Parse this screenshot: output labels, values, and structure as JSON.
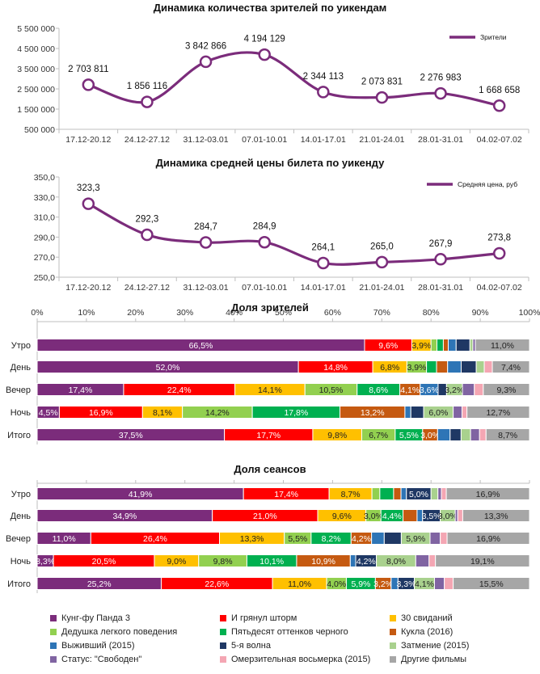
{
  "colors": {
    "line": "#7b2c7b",
    "axis": "#bfbfbf",
    "grid": "#d9d9d9"
  },
  "chart_data": [
    {
      "type": "line",
      "title": "Динамика количества зрителей по уикендам",
      "categories": [
        "17.12-20.12",
        "24.12-27.12",
        "31.12-03.01",
        "07.01-10.01",
        "14.01-17.01",
        "21.01-24.01",
        "28.01-31.01",
        "04.02-07.02"
      ],
      "series": [
        {
          "name": "Зрители",
          "values": [
            2703811,
            1856116,
            3842866,
            4194129,
            2344113,
            2073831,
            2276983,
            1668658
          ]
        }
      ],
      "labels": [
        "2 703 811",
        "1 856 116",
        "3 842 866",
        "4 194 129",
        "2 344 113",
        "2 073 831",
        "2 276 983",
        "1 668 658"
      ],
      "yticks": [
        "500 000",
        "1 500 000",
        "2 500 000",
        "3 500 000",
        "4 500 000",
        "5 500 000"
      ],
      "ylim": [
        500000,
        5500000
      ],
      "legend_label": "Зрители"
    },
    {
      "type": "line",
      "title": "Динамика средней цены билета по уикенду",
      "categories": [
        "17.12-20.12",
        "24.12-27.12",
        "31.12-03.01",
        "07.01-10.01",
        "14.01-17.01",
        "21.01-24.01",
        "28.01-31.01",
        "04.02-07.02"
      ],
      "series": [
        {
          "name": "Средняя цена, руб",
          "values": [
            323.3,
            292.3,
            284.7,
            284.9,
            264.1,
            265.0,
            267.9,
            273.8
          ]
        }
      ],
      "labels": [
        "323,3",
        "292,3",
        "284,7",
        "284,9",
        "264,1",
        "265,0",
        "267,9",
        "273,8"
      ],
      "yticks": [
        "250,0",
        "270,0",
        "290,0",
        "310,0",
        "330,0",
        "350,0"
      ],
      "ylim": [
        250,
        350
      ],
      "legend_label": "Средняя цена, руб"
    },
    {
      "type": "bar",
      "orientation": "horizontal-stacked-100",
      "title": "Доля зрителей",
      "xticks": [
        "0%",
        "10%",
        "20%",
        "30%",
        "40%",
        "50%",
        "60%",
        "70%",
        "80%",
        "90%",
        "100%"
      ],
      "categories": [
        "Утро",
        "День",
        "Вечер",
        "Ночь",
        "Итого"
      ],
      "rows": [
        [
          66.5,
          9.6,
          3.9,
          1.2,
          1.3,
          1.0,
          1.6,
          2.8,
          0.6,
          0.5,
          11.0
        ],
        [
          52.0,
          14.8,
          6.8,
          3.9,
          2.0,
          2.2,
          2.7,
          3.0,
          1.6,
          1.6,
          7.4
        ],
        [
          17.4,
          22.4,
          14.1,
          10.5,
          8.6,
          4.1,
          3.6,
          1.7,
          3.2,
          2.4,
          1.8,
          9.3
        ],
        [
          4.5,
          16.9,
          8.1,
          14.2,
          17.8,
          13.2,
          1.2,
          2.6,
          6.0,
          1.8,
          1.0,
          12.7
        ],
        [
          37.5,
          17.7,
          9.8,
          6.7,
          5.5,
          3.0,
          2.5,
          2.2,
          1.9,
          1.8,
          1.3,
          8.7
        ]
      ],
      "row_series": [
        [
          0,
          1,
          2,
          3,
          4,
          5,
          6,
          7,
          8,
          9,
          11
        ],
        [
          0,
          1,
          2,
          3,
          4,
          5,
          6,
          7,
          8,
          10,
          11
        ],
        [
          0,
          1,
          2,
          3,
          4,
          5,
          6,
          7,
          8,
          9,
          10,
          11
        ],
        [
          0,
          1,
          2,
          3,
          4,
          5,
          6,
          7,
          8,
          9,
          10,
          11
        ],
        [
          0,
          1,
          2,
          3,
          4,
          5,
          6,
          7,
          8,
          9,
          10,
          11
        ]
      ],
      "labels": [
        [
          "66,5%",
          "9,6%",
          "3,9%",
          "",
          "",
          "",
          "",
          "",
          "",
          "",
          "11,0%"
        ],
        [
          "52,0%",
          "14,8%",
          "6,8%",
          "3,9%",
          "",
          "",
          "",
          "",
          "",
          "",
          "7,4%"
        ],
        [
          "17,4%",
          "22,4%",
          "14,1%",
          "10,5%",
          "8,6%",
          "4,1%",
          "3,6%",
          "",
          "3,2%",
          "",
          "",
          "9,3%"
        ],
        [
          "4,5%",
          "16,9%",
          "8,1%",
          "14,2%",
          "17,8%",
          "13,2%",
          "",
          "",
          "6,0%",
          "",
          "",
          "12,7%"
        ],
        [
          "37,5%",
          "17,7%",
          "9,8%",
          "6,7%",
          "5,5%",
          "3,0%",
          "",
          "",
          "",
          "",
          "",
          "8,7%"
        ]
      ]
    },
    {
      "type": "bar",
      "orientation": "horizontal-stacked-100",
      "title": "Доля сеансов",
      "categories": [
        "Утро",
        "День",
        "Вечер",
        "Ночь",
        "Итого"
      ],
      "rows": [
        [
          41.9,
          17.4,
          8.7,
          1.6,
          2.8,
          1.5,
          1.1,
          5.0,
          1.4,
          0.7,
          1.0,
          16.9
        ],
        [
          34.9,
          21.0,
          9.6,
          3.0,
          4.4,
          2.8,
          1.1,
          3.5,
          3.0,
          0.5,
          1.0,
          13.3
        ],
        [
          11.0,
          26.4,
          13.3,
          5.5,
          8.2,
          4.2,
          2.6,
          3.5,
          5.9,
          2.1,
          1.4,
          16.9
        ],
        [
          3.3,
          20.5,
          9.0,
          9.8,
          10.1,
          10.9,
          1.1,
          4.2,
          8.0,
          2.7,
          1.3,
          19.1
        ],
        [
          25.2,
          22.6,
          11.0,
          4.0,
          5.9,
          3.2,
          1.4,
          3.3,
          4.1,
          2.0,
          1.8,
          15.5
        ]
      ],
      "row_series": [
        [
          0,
          1,
          2,
          3,
          4,
          5,
          6,
          7,
          8,
          9,
          10,
          11
        ],
        [
          0,
          1,
          2,
          3,
          4,
          5,
          6,
          7,
          8,
          9,
          10,
          11
        ],
        [
          0,
          1,
          2,
          3,
          4,
          5,
          6,
          7,
          8,
          9,
          10,
          11
        ],
        [
          0,
          1,
          2,
          3,
          4,
          5,
          6,
          7,
          8,
          9,
          10,
          11
        ],
        [
          0,
          1,
          2,
          3,
          4,
          5,
          6,
          7,
          8,
          9,
          10,
          11
        ]
      ],
      "labels": [
        [
          "41,9%",
          "17,4%",
          "8,7%",
          "",
          "",
          "",
          "",
          "5,0%",
          "",
          "",
          "",
          "16,9%"
        ],
        [
          "34,9%",
          "21,0%",
          "9,6%",
          "3,0%",
          "4,4%",
          "",
          "",
          "3,5%",
          "3,0%",
          "",
          "",
          "13,3%"
        ],
        [
          "11,0%",
          "26,4%",
          "13,3%",
          "5,5%",
          "8,2%",
          "4,2%",
          "",
          "",
          "5,9%",
          "",
          "",
          "16,9%"
        ],
        [
          "3,3%",
          "20,5%",
          "9,0%",
          "9,8%",
          "10,1%",
          "10,9%",
          "",
          "4,2%",
          "8,0%",
          "",
          "",
          "19,1%"
        ],
        [
          "25,2%",
          "22,6%",
          "11,0%",
          "4,0%",
          "5,9%",
          "3,2%",
          "",
          "3,3%",
          "4,1%",
          "",
          "",
          "15,5%"
        ]
      ]
    }
  ],
  "legend": [
    {
      "name": "Кунг-фу Панда 3",
      "color": "#7b2c7b"
    },
    {
      "name": "И грянул шторм",
      "color": "#ff0000"
    },
    {
      "name": "30 свиданий",
      "color": "#ffc000"
    },
    {
      "name": "Дедушка легкого поведения",
      "color": "#92d050"
    },
    {
      "name": "Пятьдесят оттенков черного",
      "color": "#00b050"
    },
    {
      "name": "Кукла (2016)",
      "color": "#c55a11"
    },
    {
      "name": "Выживший (2015)",
      "color": "#2e75b6"
    },
    {
      "name": "5-я волна",
      "color": "#1f3864"
    },
    {
      "name": "Затмение (2015)",
      "color": "#a9d18e"
    },
    {
      "name": "Статус: \"Свободен\"",
      "color": "#8064a2"
    },
    {
      "name": "Омерзительная восьмерка (2015)",
      "color": "#f4a6b3"
    },
    {
      "name": "Другие фильмы",
      "color": "#a6a6a6"
    }
  ]
}
